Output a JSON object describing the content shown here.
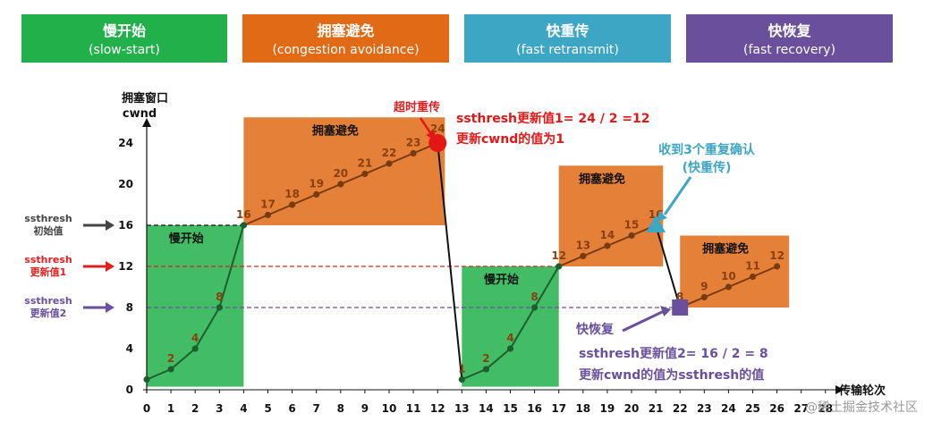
{
  "legend_boxes": [
    {
      "title": "慢开始",
      "subtitle": "(slow-start)",
      "color": "#22b04b"
    },
    {
      "title": "拥塞避免",
      "subtitle": "(congestion avoidance)",
      "color": "#e06a16"
    },
    {
      "title": "快重传",
      "subtitle": "(fast retransmit)",
      "color": "#3ea6c5"
    },
    {
      "title": "快恢复",
      "subtitle": "(fast recovery)",
      "color": "#6a4f9d"
    }
  ],
  "chart_data": {
    "type": "line",
    "ylabel_line1": "拥塞窗口",
    "ylabel_line2": "cwnd",
    "xlabel": "传输轮次",
    "x_ticks": [
      0,
      1,
      2,
      3,
      4,
      5,
      6,
      7,
      8,
      9,
      10,
      11,
      12,
      13,
      14,
      15,
      16,
      17,
      18,
      19,
      20,
      21,
      22,
      23,
      24,
      25,
      26,
      27,
      28
    ],
    "y_ticks": [
      0,
      4,
      8,
      12,
      16,
      20,
      24
    ],
    "xlim": [
      0,
      28
    ],
    "ylim": [
      0,
      26
    ],
    "series": [
      {
        "points": [
          {
            "x": 0,
            "y": 1,
            "label": ""
          },
          {
            "x": 1,
            "y": 2,
            "label": "2"
          },
          {
            "x": 2,
            "y": 4,
            "label": "4"
          },
          {
            "x": 3,
            "y": 8,
            "label": "8"
          },
          {
            "x": 4,
            "y": 16,
            "label": "16"
          },
          {
            "x": 5,
            "y": 17,
            "label": "17"
          },
          {
            "x": 6,
            "y": 18,
            "label": "18"
          },
          {
            "x": 7,
            "y": 19,
            "label": "19"
          },
          {
            "x": 8,
            "y": 20,
            "label": "20"
          },
          {
            "x": 9,
            "y": 21,
            "label": "21"
          },
          {
            "x": 10,
            "y": 22,
            "label": "22"
          },
          {
            "x": 11,
            "y": 23,
            "label": "23"
          },
          {
            "x": 12,
            "y": 24,
            "label": "24"
          },
          {
            "x": 13,
            "y": 1,
            "label": "1"
          },
          {
            "x": 14,
            "y": 2,
            "label": "2"
          },
          {
            "x": 15,
            "y": 4,
            "label": "4"
          },
          {
            "x": 16,
            "y": 8,
            "label": "8"
          },
          {
            "x": 17,
            "y": 12,
            "label": "12"
          },
          {
            "x": 18,
            "y": 13,
            "label": "13"
          },
          {
            "x": 19,
            "y": 14,
            "label": "14"
          },
          {
            "x": 20,
            "y": 15,
            "label": "15"
          },
          {
            "x": 21,
            "y": 16,
            "label": "16"
          },
          {
            "x": 22,
            "y": 8,
            "label": "8"
          },
          {
            "x": 23,
            "y": 9,
            "label": "9"
          },
          {
            "x": 24,
            "y": 10,
            "label": "10"
          },
          {
            "x": 25,
            "y": 11,
            "label": "11"
          },
          {
            "x": 26,
            "y": 12,
            "label": "12"
          }
        ]
      }
    ],
    "regions": [
      {
        "label": "慢开始",
        "x": [
          0,
          4
        ],
        "y": [
          0.3,
          16
        ],
        "color": "#22b04b"
      },
      {
        "label": "拥塞避免",
        "x": [
          4,
          12.3
        ],
        "y": [
          16,
          26.5
        ],
        "color": "#e06a16"
      },
      {
        "label": "慢开始",
        "x": [
          13,
          17
        ],
        "y": [
          0.3,
          12
        ],
        "color": "#22b04b"
      },
      {
        "label": "拥塞避免",
        "x": [
          17,
          21.3
        ],
        "y": [
          12,
          21.8
        ],
        "color": "#e06a16"
      },
      {
        "label": "拥塞避免",
        "x": [
          22,
          26.5
        ],
        "y": [
          8,
          15
        ],
        "color": "#e06a16"
      }
    ],
    "thresholds": [
      {
        "y": 16,
        "x_end": 4,
        "color": "#111111",
        "label_line1": "ssthresh",
        "label_line2": "初始值",
        "arrow_color": "#444444"
      },
      {
        "y": 12,
        "x_end": 17,
        "color": "#e02020",
        "label_line1": "ssthresh",
        "label_line2": "更新值1",
        "arrow_color": "#e02020"
      },
      {
        "y": 8,
        "x_end": 22,
        "color": "#6a4f9d",
        "label_line1": "ssthresh",
        "label_line2": "更新值2",
        "arrow_color": "#6a4f9d"
      }
    ],
    "annotations": {
      "timeout": {
        "text": "超时重传",
        "x": 12,
        "y": 24,
        "color": "#e02020"
      },
      "timeout_note_line1": "ssthresh更新值1= 24 / 2 =12",
      "timeout_note_line2": "更新cwnd的值为1",
      "dupack_line1": "收到3个重复确认",
      "dupack_line2": "(快重传)",
      "dupack_color": "#3ea6c5",
      "recovery_label": "快恢复",
      "recovery_note_line1": "ssthresh更新值2= 16 / 2 = 8",
      "recovery_note_line2": "更新cwnd的值为ssthresh的值",
      "recovery_color": "#6a4f9d"
    },
    "line_color": "#1c5e2c",
    "cong_line_color": "#7a3a10",
    "watermark": "@稀土掘金技术社区"
  }
}
